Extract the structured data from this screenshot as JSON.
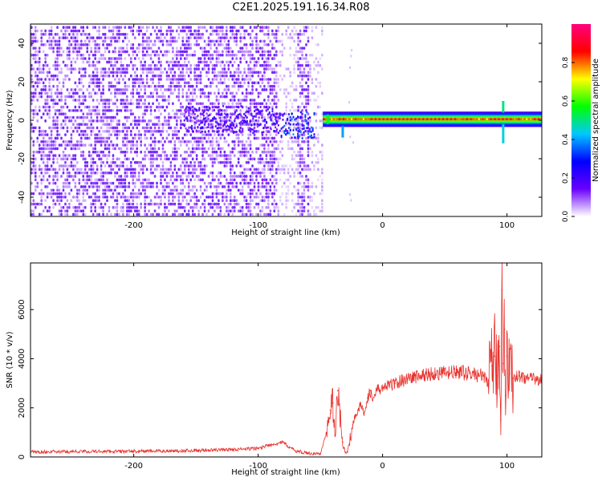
{
  "title": "C2E1.2025.191.16.34.R08",
  "chart_data": [
    {
      "type": "heatmap",
      "title": "C2E1.2025.191.16.34.R08",
      "xlabel": "Height of straight line (km)",
      "ylabel": "Frequency (Hz)",
      "xlim": [
        -283,
        128
      ],
      "ylim": [
        -50,
        50
      ],
      "x_ticks": [
        -200,
        -100,
        0,
        100
      ],
      "y_ticks": [
        -40,
        -20,
        0,
        20,
        40
      ],
      "colorbar": {
        "label": "Normalized spectral amplitude",
        "range": [
          0.0,
          1.0
        ],
        "ticks": [
          0.0,
          0.2,
          0.4,
          0.6,
          0.8
        ],
        "colors": [
          "#ffffff",
          "#6a00ff",
          "#0000ff",
          "#00c8ff",
          "#00ff00",
          "#ffff00",
          "#ff0000",
          "#ff0080"
        ]
      },
      "features": [
        {
          "name": "noise",
          "x_range": [
            -283,
            -48
          ],
          "frequency_range": [
            -50,
            48
          ],
          "amplitude": 0.15
        },
        {
          "name": "signal_band",
          "x_range": [
            -48,
            128
          ],
          "frequency": 0.5,
          "amplitude": 0.9
        }
      ]
    },
    {
      "type": "line",
      "xlabel": "Height of straight line (km)",
      "ylabel": "SNR (10 * v/v)",
      "xlim": [
        -283,
        128
      ],
      "ylim": [
        0,
        7900
      ],
      "x_ticks": [
        -200,
        -100,
        0,
        100
      ],
      "y_ticks": [
        0,
        2000,
        4000,
        6000
      ],
      "color": "#e8322d",
      "series": [
        {
          "x": [
            -283,
            -250,
            -200,
            -150,
            -120,
            -100,
            -90,
            -80,
            -75,
            -70,
            -60,
            -50,
            -45,
            -42,
            -40,
            -38,
            -36,
            -34,
            -32,
            -30,
            -28,
            -26,
            -24,
            -22,
            -20,
            -18,
            -15,
            -12,
            -10,
            -8,
            -5,
            0,
            5,
            10,
            20,
            30,
            40,
            50,
            60,
            70,
            80,
            85,
            88,
            90,
            92,
            94,
            95,
            96,
            97,
            98,
            99,
            100,
            102,
            105,
            110,
            120,
            128
          ],
          "values": [
            200,
            220,
            230,
            260,
            300,
            350,
            500,
            600,
            400,
            250,
            150,
            120,
            1000,
            1900,
            2200,
            900,
            2700,
            1600,
            600,
            200,
            200,
            800,
            1300,
            1700,
            1900,
            2100,
            1800,
            2400,
            2700,
            2300,
            2700,
            2800,
            2900,
            3000,
            3200,
            3300,
            3400,
            3400,
            3450,
            3400,
            3300,
            3100,
            3700,
            4100,
            3300,
            4500,
            1500,
            6800,
            3800,
            5200,
            2500,
            4100,
            3400,
            3200,
            3300,
            3150,
            3200
          ]
        }
      ]
    }
  ]
}
